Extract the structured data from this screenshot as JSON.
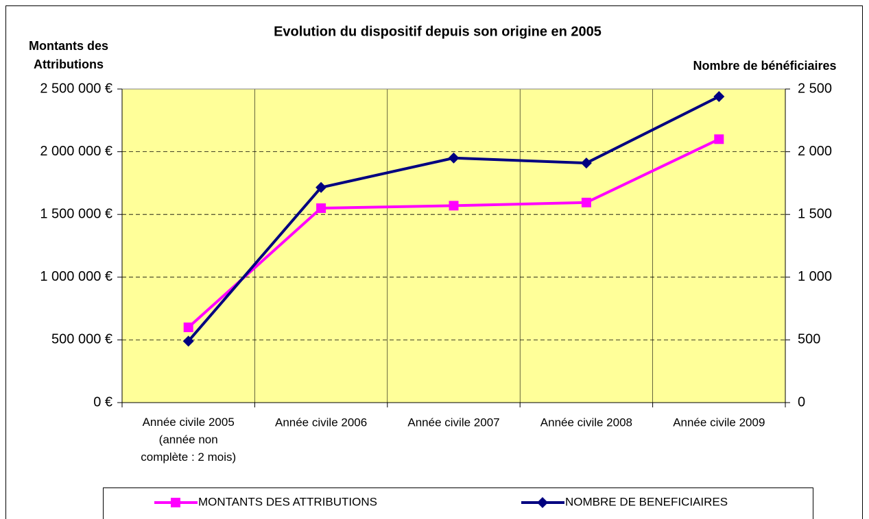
{
  "chart_data": {
    "type": "line",
    "title": "Evolution du dispositif depuis son origine en 2005",
    "y_label": "Montants des\nAttributions",
    "y2_label": "Nombre de bénéficiaires",
    "categories": [
      "Année civile 2005\n(année non\ncomplète : 2 mois)",
      "Année civile 2006",
      "Année civile 2007",
      "Année civile 2008",
      "Année civile 2009"
    ],
    "series": [
      {
        "name": "MONTANTS DES ATTRIBUTIONS",
        "color": "#ff00ff",
        "marker": "square",
        "values": [
          600000,
          1550000,
          1570000,
          1595000,
          2100000
        ]
      },
      {
        "name": "NOMBRE DE BENEFICIAIRES",
        "color": "#000080",
        "marker": "diamond",
        "axis": "y2",
        "values": [
          490,
          1715,
          1950,
          1910,
          2440
        ]
      }
    ],
    "ylim": [
      0,
      2500000
    ],
    "yticks": [
      {
        "value": 0,
        "label": "0 €"
      },
      {
        "value": 500000,
        "label": "500 000 €"
      },
      {
        "value": 1000000,
        "label": "1 000 000 €"
      },
      {
        "value": 1500000,
        "label": "1 500 000 €"
      },
      {
        "value": 2000000,
        "label": "2 000 000 €"
      },
      {
        "value": 2500000,
        "label": "2 500 000 €"
      }
    ],
    "y2lim": [
      0,
      2500
    ],
    "y2ticks": [
      0,
      500,
      {
        "value": 1000,
        "label": "1 000"
      },
      {
        "value": 1500,
        "label": "1 500"
      },
      {
        "value": 2000,
        "label": "2 000"
      },
      {
        "value": 2500,
        "label": "2 500"
      }
    ],
    "grid": true,
    "plot_background": "#ffff99",
    "legend": "bottom"
  }
}
